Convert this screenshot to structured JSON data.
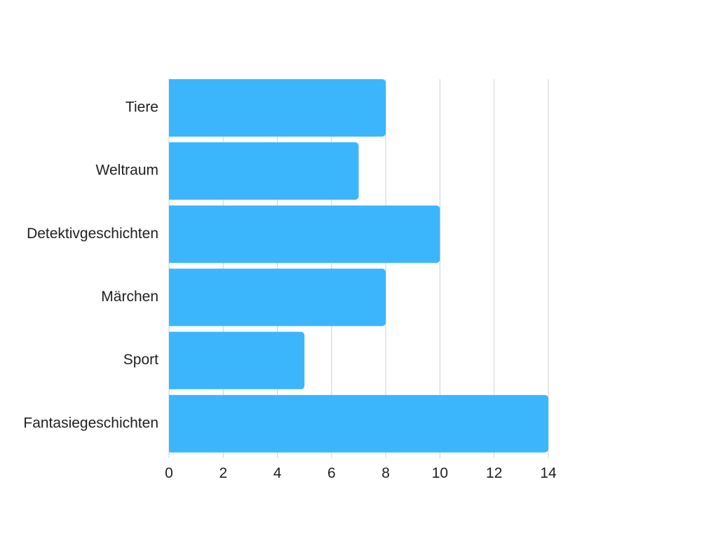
{
  "chart_data": {
    "type": "bar",
    "orientation": "horizontal",
    "title": "",
    "xlabel": "",
    "ylabel": "",
    "categories": [
      "Tiere",
      "Weltraum",
      "Detektivgeschichten",
      "Märchen",
      "Sport",
      "Fantasiegeschichten"
    ],
    "values": [
      8,
      7,
      10,
      8,
      5,
      14
    ],
    "xlim": [
      0,
      14
    ],
    "xticks": [
      "0",
      "2",
      "4",
      "6",
      "8",
      "10",
      "12",
      "14"
    ],
    "grid": true,
    "legend": "none",
    "bar_color": "#3bb6fd",
    "grid_color": "#cfcfcf"
  }
}
